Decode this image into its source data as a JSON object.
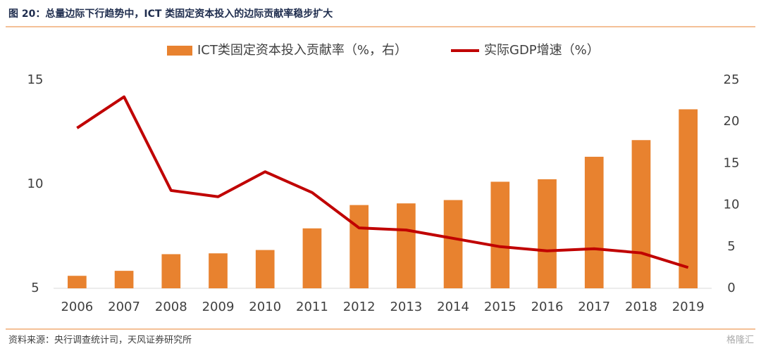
{
  "chart_data": {
    "type": "combo",
    "title": "图 20：总量边际下行趋势中，ICT 类固定资本投入的边际贡献率稳步扩大",
    "source": "资料来源：央行调查统计司，天风证券研究所",
    "watermark": "格隆汇",
    "categories": [
      "2006",
      "2007",
      "2008",
      "2009",
      "2010",
      "2011",
      "2012",
      "2013",
      "2014",
      "2015",
      "2016",
      "2017",
      "2018",
      "2019"
    ],
    "series": [
      {
        "name": "ICT类固定资本投入贡献率（%，右）",
        "type": "bar",
        "axis": "y2",
        "color": "#e8822f",
        "values": [
          1.5,
          2.1,
          4.1,
          4.2,
          4.6,
          7.2,
          10.0,
          10.2,
          10.6,
          12.8,
          13.1,
          15.8,
          17.8,
          21.5
        ]
      },
      {
        "name": "实际GDP增速（%）",
        "type": "line",
        "axis": "y",
        "color": "#c00000",
        "values": [
          12.7,
          14.2,
          9.7,
          9.4,
          10.6,
          9.6,
          7.9,
          7.8,
          7.4,
          7.0,
          6.8,
          6.9,
          6.7,
          6.0
        ]
      }
    ],
    "ylim": [
      5,
      15
    ],
    "yticks": [
      5,
      10,
      15
    ],
    "y2lim": [
      0,
      25
    ],
    "y2ticks": [
      0,
      5,
      10,
      15,
      20,
      25
    ],
    "grid": false
  }
}
